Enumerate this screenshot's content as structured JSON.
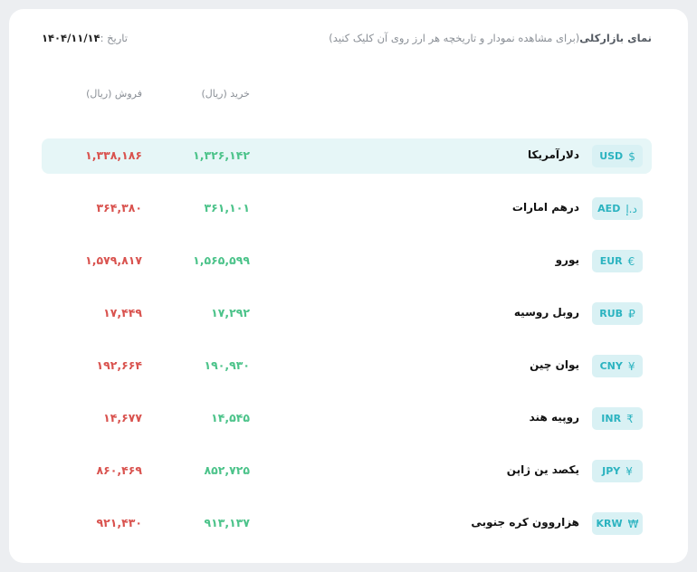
{
  "header": {
    "title_bold": "نمای بازارکلی",
    "title_hint": "(برای مشاهده نمودار و تاریخچه هر ارز روی آن کلیک کنید)",
    "date_label": "تاریخ :",
    "date_value": "۱۴۰۴/۱۱/۱۴"
  },
  "columns": {
    "buy": "خرید (ریال)",
    "sell": "فروش (ریال)"
  },
  "colors": {
    "buy": "#4cc38a",
    "sell": "#d9534f",
    "accent": "#2bb3c0",
    "active_row": "#e6f6f7"
  },
  "rows": [
    {
      "code": "USD",
      "symbol": "$",
      "name": "دلارآمریکا",
      "buy": "۱,۳۲۶,۱۴۲",
      "sell": "۱,۳۳۸,۱۸۶",
      "active": true
    },
    {
      "code": "AED",
      "symbol": "د.إ",
      "name": "درهم امارات",
      "buy": "۳۶۱,۱۰۱",
      "sell": "۳۶۴,۳۸۰"
    },
    {
      "code": "EUR",
      "symbol": "€",
      "name": "یورو",
      "buy": "۱,۵۶۵,۵۹۹",
      "sell": "۱,۵۷۹,۸۱۷"
    },
    {
      "code": "RUB",
      "symbol": "₽",
      "name": "روبل روسیه",
      "buy": "۱۷,۲۹۲",
      "sell": "۱۷,۴۴۹"
    },
    {
      "code": "CNY",
      "symbol": "¥",
      "name": "یوان چین",
      "buy": "۱۹۰,۹۳۰",
      "sell": "۱۹۲,۶۶۴"
    },
    {
      "code": "INR",
      "symbol": "₹",
      "name": "روپیه هند",
      "buy": "۱۴,۵۴۵",
      "sell": "۱۴,۶۷۷"
    },
    {
      "code": "JPY",
      "symbol": "¥",
      "name": "یکصد ین ژاپن",
      "buy": "۸۵۲,۷۲۵",
      "sell": "۸۶۰,۴۶۹"
    },
    {
      "code": "KRW",
      "symbol": "₩",
      "name": "هزاروون کره جنوبی",
      "buy": "۹۱۳,۱۳۷",
      "sell": "۹۲۱,۴۳۰"
    }
  ]
}
